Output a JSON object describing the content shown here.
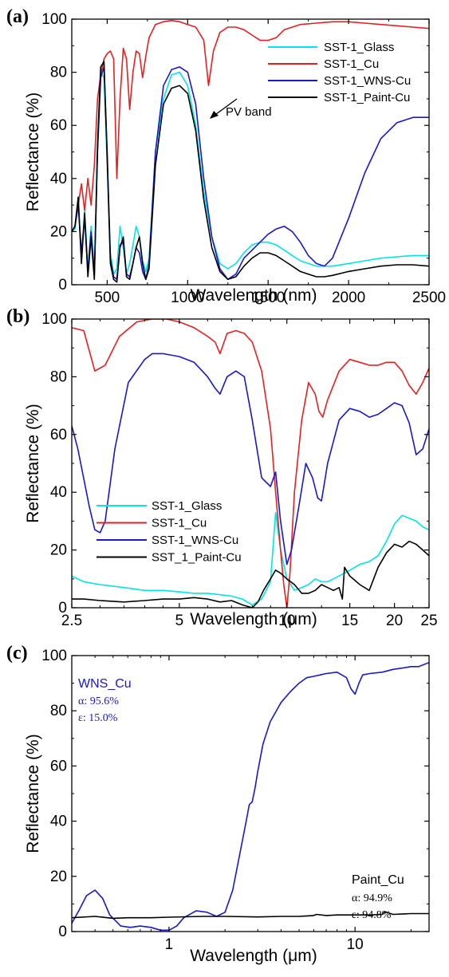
{
  "chart_data": [
    {
      "panel": "(a)",
      "type": "line",
      "xlabel": "Wavelength (nm)",
      "ylabel": "Reflectance (%)",
      "xlim": [
        280,
        2500
      ],
      "ylim": [
        0,
        100
      ],
      "x_scale": "linear",
      "xticks": [
        500,
        1000,
        1500,
        2000,
        2500
      ],
      "yticks": [
        0,
        20,
        40,
        60,
        80,
        100
      ],
      "legend_position": "top-right",
      "annotation": "PV band",
      "series": [
        {
          "name": "SST-1_Glass",
          "color": "#00e5e5",
          "x": [
            280,
            300,
            320,
            340,
            360,
            380,
            400,
            420,
            440,
            460,
            480,
            500,
            520,
            540,
            560,
            580,
            600,
            620,
            640,
            660,
            680,
            700,
            720,
            740,
            760,
            800,
            850,
            900,
            950,
            1000,
            1050,
            1100,
            1150,
            1200,
            1250,
            1300,
            1350,
            1400,
            1450,
            1500,
            1550,
            1600,
            1650,
            1700,
            1750,
            1800,
            1850,
            1900,
            2000,
            2100,
            2200,
            2300,
            2400,
            2500
          ],
          "y": [
            20,
            21,
            32,
            10,
            28,
            6,
            22,
            5,
            55,
            80,
            78,
            45,
            12,
            4,
            6,
            22,
            14,
            4,
            8,
            15,
            22,
            18,
            9,
            5,
            10,
            50,
            70,
            79,
            80,
            75,
            60,
            35,
            18,
            8,
            6,
            8,
            12,
            15,
            16,
            16,
            15,
            13,
            11,
            9,
            8,
            7,
            7,
            7,
            8,
            9,
            10,
            10.5,
            11,
            11
          ]
        },
        {
          "name": "SST-1_Cu",
          "color": "#e52020",
          "x": [
            280,
            300,
            320,
            340,
            360,
            380,
            400,
            420,
            440,
            460,
            480,
            500,
            520,
            540,
            560,
            580,
            600,
            620,
            640,
            660,
            680,
            700,
            720,
            740,
            760,
            800,
            850,
            900,
            950,
            1000,
            1050,
            1100,
            1130,
            1160,
            1200,
            1250,
            1300,
            1350,
            1400,
            1450,
            1500,
            1550,
            1600,
            1700,
            1800,
            1900,
            2000,
            2100,
            2200,
            2300,
            2400,
            2500
          ],
          "y": [
            20,
            22,
            30,
            38,
            28,
            40,
            30,
            45,
            70,
            79,
            85,
            87,
            88,
            85,
            40,
            70,
            89,
            85,
            66,
            80,
            88,
            87,
            78,
            86,
            93,
            98,
            99,
            99.5,
            99,
            98,
            97,
            92,
            75,
            88,
            95,
            97,
            97,
            96,
            94,
            92,
            92,
            93,
            96,
            98,
            98.5,
            99,
            99,
            98.5,
            98,
            97.5,
            97,
            96.5
          ]
        },
        {
          "name": "SST-1_WNS-Cu",
          "color": "#1818cc",
          "x": [
            280,
            300,
            320,
            340,
            360,
            380,
            400,
            420,
            440,
            460,
            480,
            500,
            520,
            540,
            560,
            580,
            600,
            620,
            640,
            660,
            680,
            700,
            720,
            740,
            760,
            800,
            850,
            900,
            950,
            1000,
            1050,
            1100,
            1150,
            1200,
            1250,
            1300,
            1350,
            1400,
            1450,
            1500,
            1550,
            1600,
            1650,
            1700,
            1750,
            1800,
            1850,
            1900,
            2000,
            2100,
            2200,
            2300,
            2400,
            2500
          ],
          "y": [
            20,
            22,
            30,
            12,
            25,
            5,
            20,
            4,
            50,
            78,
            82,
            50,
            10,
            3,
            2,
            15,
            16,
            4,
            3,
            8,
            14,
            12,
            5,
            2,
            8,
            50,
            75,
            81,
            82,
            80,
            68,
            40,
            18,
            6,
            2,
            4,
            10,
            13,
            16,
            19,
            21,
            22,
            20,
            16,
            11,
            8,
            7,
            10,
            25,
            42,
            55,
            61,
            63,
            63
          ]
        },
        {
          "name": "SST-1_Paint-Cu",
          "color": "#000000",
          "x": [
            280,
            300,
            320,
            340,
            360,
            380,
            400,
            420,
            440,
            460,
            480,
            500,
            520,
            540,
            560,
            580,
            600,
            620,
            640,
            660,
            680,
            700,
            720,
            740,
            760,
            800,
            850,
            900,
            950,
            1000,
            1050,
            1100,
            1150,
            1200,
            1250,
            1300,
            1350,
            1400,
            1450,
            1500,
            1550,
            1600,
            1650,
            1700,
            1750,
            1800,
            1850,
            1900,
            2000,
            2100,
            2200,
            2300,
            2400,
            2500
          ],
          "y": [
            20,
            22,
            33,
            8,
            27,
            3,
            18,
            2,
            52,
            82,
            84,
            48,
            8,
            2,
            1,
            14,
            18,
            3,
            2,
            8,
            14,
            18,
            8,
            2,
            6,
            45,
            68,
            74,
            75,
            72,
            58,
            32,
            14,
            5,
            2,
            3,
            7,
            10,
            12,
            12,
            11,
            9,
            7,
            5,
            4,
            3,
            3,
            3.5,
            5,
            6,
            7,
            7.5,
            7.5,
            7
          ]
        }
      ]
    },
    {
      "panel": "(b)",
      "type": "line",
      "xlabel": "Wavelength (μm)",
      "ylabel": "Reflectance (%)",
      "xlim": [
        2.5,
        25
      ],
      "ylim": [
        0,
        100
      ],
      "x_scale": "log",
      "xticks": [
        2.5,
        5,
        10,
        15,
        20,
        25
      ],
      "yticks": [
        0,
        20,
        40,
        60,
        80,
        100
      ],
      "legend_position": "bottom-left",
      "series": [
        {
          "name": "SST-1_Glass",
          "color": "#00e5e5",
          "x": [
            2.5,
            2.7,
            3,
            3.5,
            4,
            4.5,
            5,
            5.5,
            6,
            6.5,
            7,
            7.5,
            8,
            8.5,
            9,
            9.3,
            9.6,
            10,
            10.5,
            11,
            11.5,
            12,
            12.5,
            13,
            13.5,
            14,
            15,
            16,
            17,
            18,
            19,
            20,
            21,
            22,
            23,
            24,
            25
          ],
          "y": [
            11,
            9,
            8,
            7,
            6,
            6,
            5.5,
            5,
            5,
            4.5,
            4,
            3,
            1,
            3,
            9,
            33,
            20,
            10,
            6,
            7,
            8,
            10,
            9,
            9,
            10,
            11,
            13,
            15,
            16,
            18,
            23,
            29,
            32,
            31,
            30,
            28,
            27
          ]
        },
        {
          "name": "SST-1_Cu",
          "color": "#e52020",
          "x": [
            2.5,
            2.7,
            2.9,
            3.1,
            3.4,
            3.8,
            4.2,
            4.6,
            5,
            5.5,
            6,
            6.3,
            6.5,
            6.8,
            7.2,
            7.6,
            8,
            8.5,
            9,
            9.3,
            9.6,
            9.8,
            10,
            10.2,
            10.5,
            11,
            11.5,
            12,
            12.3,
            12.6,
            13,
            14,
            15,
            16,
            17,
            18,
            19,
            20,
            21,
            22,
            23,
            24,
            25
          ],
          "y": [
            97,
            96,
            82,
            84,
            94,
            99,
            100,
            100,
            99,
            97,
            94,
            92,
            88,
            95,
            96,
            95,
            92,
            82,
            62,
            40,
            20,
            8,
            0,
            12,
            40,
            65,
            78,
            74,
            68,
            66,
            72,
            82,
            86,
            85,
            84,
            84,
            85,
            85,
            82,
            77,
            74,
            78,
            83
          ]
        },
        {
          "name": "SST-1_WNS-Cu",
          "color": "#1818cc",
          "x": [
            2.5,
            2.6,
            2.8,
            2.9,
            3.0,
            3.1,
            3.3,
            3.6,
            4,
            4.2,
            4.5,
            5,
            5.5,
            6,
            6.3,
            6.5,
            6.8,
            7.2,
            7.6,
            8,
            8.5,
            9,
            9.3,
            9.6,
            10,
            10.3,
            10.8,
            11.3,
            11.8,
            12.2,
            12.5,
            13,
            14,
            15,
            16,
            17,
            18,
            19,
            20,
            21,
            22,
            23,
            24,
            25
          ],
          "y": [
            63,
            55,
            35,
            27,
            26,
            30,
            55,
            78,
            86,
            88,
            88,
            87,
            85,
            80,
            76,
            74,
            80,
            82,
            80,
            65,
            45,
            42,
            47,
            30,
            15,
            20,
            35,
            50,
            45,
            38,
            37,
            50,
            65,
            69,
            68,
            66,
            67,
            69,
            71,
            70,
            64,
            53,
            55,
            62
          ]
        },
        {
          "name": "SST_1_Paint-Cu",
          "color": "#000000",
          "x": [
            2.5,
            2.7,
            3,
            3.5,
            4,
            4.5,
            5,
            5.5,
            6,
            6.5,
            7,
            7.5,
            8,
            8.3,
            8.6,
            9,
            9.3,
            9.6,
            10,
            10.5,
            11,
            11.5,
            12,
            12.5,
            13,
            13.5,
            14,
            14.3,
            14.5,
            15,
            16,
            17,
            18,
            19,
            20,
            21,
            22,
            23,
            24,
            25
          ],
          "y": [
            3,
            3,
            2.5,
            2,
            2.5,
            3,
            3,
            3.5,
            3,
            2,
            2.5,
            1,
            0,
            2,
            6,
            10,
            13,
            12,
            10,
            8,
            5,
            5,
            6,
            8,
            7,
            6,
            7,
            3,
            14,
            11,
            8,
            6,
            14,
            19,
            22,
            21,
            23,
            22,
            20,
            18
          ]
        }
      ]
    },
    {
      "panel": "(c)",
      "type": "line",
      "xlabel": "Wavelength (μm)",
      "ylabel": "Reflectance (%)",
      "xlim": [
        0.3,
        25
      ],
      "ylim": [
        0,
        100
      ],
      "x_scale": "log",
      "xticks": [
        1,
        10
      ],
      "yticks": [
        0,
        20,
        40,
        60,
        80,
        100
      ],
      "annotations": [
        {
          "title": "WNS_Cu",
          "alpha": "α: 95.6%",
          "eps": "ε: 15.0%"
        },
        {
          "title": "Paint_Cu",
          "alpha": "α: 94.9%",
          "eps": "ε: 94.8%"
        }
      ],
      "series": [
        {
          "name": "WNS_Cu",
          "color": "#1818cc",
          "x": [
            0.3,
            0.33,
            0.36,
            0.4,
            0.44,
            0.48,
            0.55,
            0.62,
            0.7,
            0.8,
            0.9,
            1.0,
            1.1,
            1.2,
            1.4,
            1.6,
            1.8,
            2.0,
            2.2,
            2.4,
            2.6,
            2.7,
            2.8,
            2.9,
            3.0,
            3.2,
            3.5,
            4,
            4.5,
            5,
            5.5,
            6,
            6.5,
            7,
            8,
            9,
            9.5,
            10,
            10.5,
            11,
            12,
            14,
            16,
            18,
            20,
            22,
            25
          ],
          "y": [
            3,
            8,
            13,
            15,
            12,
            6,
            2,
            1.5,
            2,
            1.5,
            0.5,
            0.5,
            2,
            5,
            7.5,
            7,
            5.5,
            7,
            15,
            28,
            40,
            46,
            47,
            52,
            58,
            68,
            76,
            83,
            87,
            90,
            92,
            92.5,
            93,
            93.5,
            94,
            92,
            88,
            86,
            90,
            93,
            93.5,
            94,
            95,
            95.5,
            96,
            96,
            97.5
          ]
        },
        {
          "name": "Paint_Cu",
          "color": "#000000",
          "x": [
            0.3,
            0.4,
            0.5,
            0.6,
            0.8,
            1,
            1.5,
            2,
            3,
            4,
            5,
            6,
            6.2,
            7,
            8,
            10,
            12,
            14,
            14.5,
            16,
            20,
            25
          ],
          "y": [
            5,
            5.5,
            4.8,
            5,
            5,
            5.2,
            5.5,
            5.5,
            5.3,
            5.5,
            5.5,
            5.8,
            6.2,
            5.8,
            6,
            6,
            6,
            6.2,
            7.2,
            6.2,
            6.5,
            6.5
          ]
        }
      ]
    }
  ]
}
